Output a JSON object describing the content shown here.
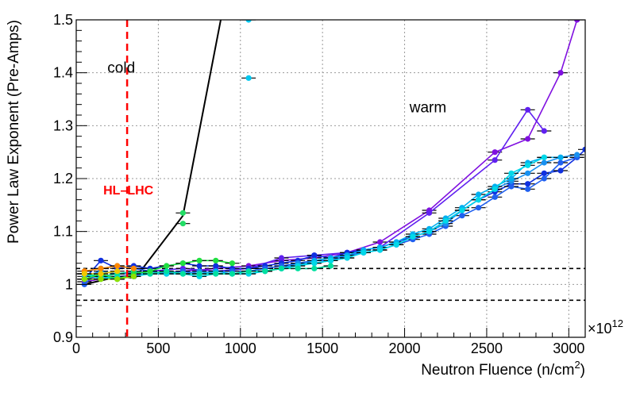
{
  "chart_data": {
    "type": "line",
    "title": "",
    "xlabel": "Neutron Fluence (n/cm",
    "xlabel_sup": "2",
    "xlabel_close": ")",
    "ylabel": "Power Law Exponent (Pre-Amps)",
    "xlim": [
      0,
      3100
    ],
    "ylim": [
      0.9,
      1.5
    ],
    "x_ticks": [
      0,
      500,
      1000,
      1500,
      2000,
      2500,
      3000
    ],
    "x_tick_labels": [
      "0",
      "500",
      "1000",
      "1500",
      "2000",
      "2500",
      "3000"
    ],
    "y_ticks": [
      0.9,
      1.0,
      1.1,
      1.2,
      1.3,
      1.4,
      1.5
    ],
    "y_tick_labels": [
      "0.9",
      "1",
      "1.1",
      "1.2",
      "1.3",
      "1.4",
      "1.5"
    ],
    "x_multiplier_base": "×10",
    "x_multiplier_exp": "12",
    "grid": true,
    "annotations": [
      {
        "text": "cold",
        "x": 190,
        "y": 1.4
      },
      {
        "text": "warm",
        "x": 2030,
        "y": 1.325
      }
    ],
    "hl_lhc": {
      "label": "HL–LHC",
      "x": 310,
      "label_x": 165,
      "label_y": 1.17,
      "color": "#ff0000"
    },
    "reference_lines": [
      1.03,
      0.97
    ],
    "series": [
      {
        "name": "cold-black",
        "color": "#000000",
        "markers": false,
        "x": [
          50,
          260,
          360,
          650,
          880
        ],
        "y": [
          1.0,
          1.015,
          1.012,
          1.13,
          1.5
        ]
      },
      {
        "name": "cold-green-outlier",
        "color": "#22dd66",
        "markers": true,
        "lines": false,
        "x": [
          650,
          650
        ],
        "y": [
          1.135,
          1.115
        ]
      },
      {
        "name": "cold-cyan-outlier",
        "color": "#00c8f0",
        "markers": true,
        "lines": false,
        "x": [
          1050,
          1050
        ],
        "y": [
          1.5,
          1.39
        ]
      },
      {
        "name": "violet",
        "color": "#8010e0",
        "markers": true,
        "x": [
          50,
          250,
          450,
          650,
          850,
          1050,
          1250,
          1450,
          1650,
          1850,
          2150,
          2550,
          2750,
          2950,
          3050
        ],
        "y": [
          1.005,
          1.015,
          1.02,
          1.025,
          1.03,
          1.035,
          1.045,
          1.05,
          1.06,
          1.08,
          1.14,
          1.25,
          1.275,
          1.4,
          1.5
        ]
      },
      {
        "name": "purple",
        "color": "#6020f0",
        "markers": true,
        "x": [
          50,
          250,
          450,
          650,
          850,
          1050,
          1250,
          1450,
          1650,
          1850,
          2150,
          2550,
          2750,
          2850
        ],
        "y": [
          1.01,
          1.02,
          1.025,
          1.03,
          1.025,
          1.03,
          1.05,
          1.055,
          1.06,
          1.07,
          1.135,
          1.235,
          1.33,
          1.29
        ]
      },
      {
        "name": "blue",
        "color": "#1030e0",
        "markers": true,
        "x": [
          50,
          150,
          250,
          350,
          450,
          550,
          650,
          750,
          850,
          950,
          1050,
          1150,
          1250,
          1350,
          1450,
          1550,
          1650,
          1750,
          1850,
          1950,
          2050,
          2150,
          2250,
          2350,
          2450,
          2550,
          2650,
          2750,
          2850,
          2950,
          3050,
          3100
        ],
        "y": [
          1.01,
          1.045,
          1.03,
          1.035,
          1.03,
          1.035,
          1.04,
          1.035,
          1.035,
          1.03,
          1.03,
          1.035,
          1.04,
          1.045,
          1.055,
          1.05,
          1.06,
          1.065,
          1.07,
          1.08,
          1.09,
          1.1,
          1.12,
          1.14,
          1.16,
          1.175,
          1.19,
          1.19,
          1.21,
          1.215,
          1.24,
          1.255
        ]
      },
      {
        "name": "royal-blue",
        "color": "#2060f0",
        "markers": true,
        "x": [
          50,
          150,
          250,
          350,
          450,
          550,
          650,
          750,
          850,
          950,
          1050,
          1150,
          1250,
          1350,
          1450,
          1550,
          1650,
          1750,
          1850,
          1950,
          2050,
          2150,
          2250,
          2350,
          2450,
          2550,
          2650,
          2750,
          2850,
          2950,
          3050
        ],
        "y": [
          1.0,
          1.03,
          1.035,
          1.03,
          1.025,
          1.02,
          1.025,
          1.02,
          1.025,
          1.025,
          1.025,
          1.03,
          1.035,
          1.04,
          1.045,
          1.045,
          1.055,
          1.06,
          1.065,
          1.075,
          1.085,
          1.095,
          1.11,
          1.13,
          1.145,
          1.165,
          1.185,
          1.18,
          1.2,
          1.23,
          1.24
        ]
      },
      {
        "name": "azure",
        "color": "#1890f0",
        "markers": true,
        "x": [
          50,
          150,
          250,
          350,
          450,
          550,
          650,
          750,
          850,
          950,
          1050,
          1150,
          1250,
          1350,
          1450,
          1550,
          1650,
          1750,
          1850,
          1950,
          2050,
          2150,
          2250,
          2350,
          2450,
          2550,
          2650,
          2750,
          2850,
          2950,
          3050
        ],
        "y": [
          1.015,
          1.025,
          1.02,
          1.02,
          1.025,
          1.02,
          1.02,
          1.025,
          1.02,
          1.02,
          1.025,
          1.025,
          1.03,
          1.04,
          1.04,
          1.045,
          1.05,
          1.06,
          1.065,
          1.075,
          1.09,
          1.1,
          1.115,
          1.14,
          1.16,
          1.18,
          1.195,
          1.21,
          1.23,
          1.24,
          1.245
        ]
      },
      {
        "name": "sky",
        "color": "#00b0f0",
        "markers": true,
        "x": [
          50,
          150,
          250,
          350,
          450,
          550,
          650,
          750,
          850,
          950,
          1050,
          1150,
          1250,
          1350,
          1450,
          1550,
          1650,
          1750,
          1850,
          1950,
          2050,
          2150,
          2250,
          2350,
          2450,
          2550,
          2650,
          2750,
          2850,
          2950
        ],
        "y": [
          1.02,
          1.015,
          1.01,
          1.02,
          1.02,
          1.025,
          1.02,
          1.02,
          1.025,
          1.02,
          1.02,
          1.025,
          1.03,
          1.035,
          1.045,
          1.05,
          1.055,
          1.065,
          1.07,
          1.08,
          1.095,
          1.105,
          1.125,
          1.145,
          1.17,
          1.185,
          1.2,
          1.23,
          1.24,
          1.24
        ]
      },
      {
        "name": "cyan",
        "color": "#00d8e8",
        "markers": true,
        "x": [
          50,
          150,
          250,
          350,
          450,
          550,
          650,
          750,
          850,
          950,
          1050,
          1150,
          1250,
          1350,
          1450,
          1550,
          1650,
          1750,
          1850,
          1950,
          2050,
          2150,
          2250,
          2350,
          2450,
          2550,
          2650,
          2750,
          2850
        ],
        "y": [
          1.02,
          1.01,
          1.015,
          1.015,
          1.02,
          1.02,
          1.02,
          1.015,
          1.02,
          1.02,
          1.02,
          1.025,
          1.03,
          1.035,
          1.04,
          1.045,
          1.05,
          1.06,
          1.065,
          1.075,
          1.09,
          1.1,
          1.12,
          1.14,
          1.16,
          1.18,
          1.21,
          1.225,
          1.24
        ]
      },
      {
        "name": "teal-green",
        "color": "#00e0a0",
        "markers": true,
        "x": [
          50,
          150,
          250,
          350,
          450,
          550,
          650,
          750,
          850,
          950,
          1050,
          1150,
          1250,
          1350,
          1450,
          1550
        ],
        "y": [
          1.02,
          1.015,
          1.02,
          1.025,
          1.02,
          1.025,
          1.02,
          1.02,
          1.02,
          1.02,
          1.025,
          1.025,
          1.03,
          1.03,
          1.03,
          1.035
        ]
      },
      {
        "name": "green",
        "color": "#20e040",
        "markers": true,
        "x": [
          50,
          150,
          250,
          350,
          450,
          550,
          650,
          750,
          850,
          950
        ],
        "y": [
          1.01,
          1.02,
          1.01,
          1.02,
          1.025,
          1.035,
          1.04,
          1.045,
          1.045,
          1.04
        ]
      },
      {
        "name": "lime",
        "color": "#90e000",
        "markers": true,
        "x": [
          50,
          150,
          250,
          350
        ],
        "y": [
          1.01,
          1.01,
          1.01,
          1.015
        ]
      },
      {
        "name": "orange",
        "color": "#ff8800",
        "markers": true,
        "x": [
          50,
          150,
          250,
          350
        ],
        "y": [
          1.025,
          1.03,
          1.035,
          1.03
        ]
      },
      {
        "name": "yellow",
        "color": "#f0c800",
        "markers": true,
        "x": [
          50,
          150,
          250
        ],
        "y": [
          1.02,
          1.02,
          1.025
        ]
      }
    ]
  }
}
